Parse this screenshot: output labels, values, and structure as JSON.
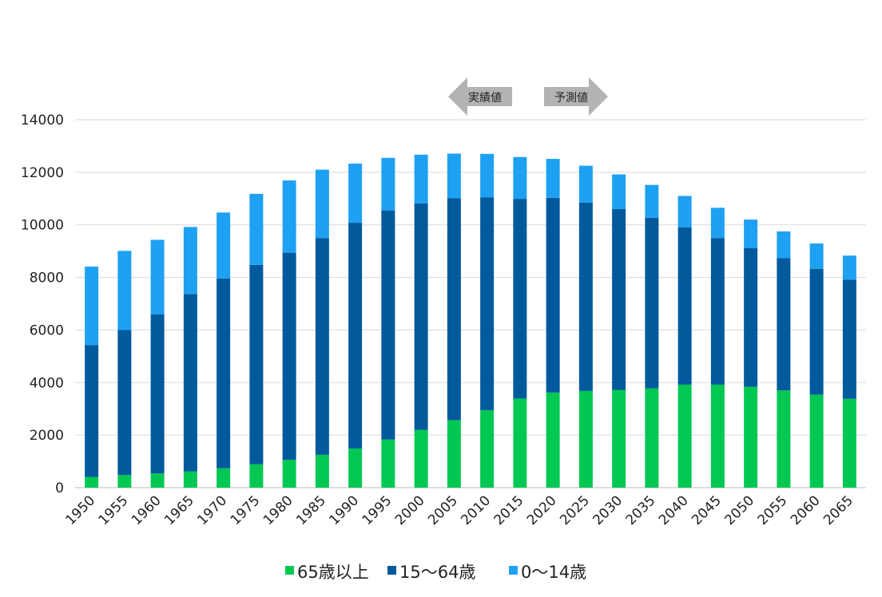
{
  "chart_data": {
    "type": "bar",
    "stacked": true,
    "title": "",
    "xlabel": "",
    "ylabel": "",
    "ylim": [
      0,
      14000
    ],
    "yticks": [
      0,
      2000,
      4000,
      6000,
      8000,
      10000,
      12000,
      14000
    ],
    "grid": true,
    "legend_position": "bottom",
    "categories": [
      "1950",
      "1955",
      "1960",
      "1965",
      "1970",
      "1975",
      "1980",
      "1985",
      "1990",
      "1995",
      "2000",
      "2005",
      "2010",
      "2015",
      "2020",
      "2025",
      "2030",
      "2035",
      "2040",
      "2045",
      "2050",
      "2055",
      "2060",
      "2065"
    ],
    "series": [
      {
        "name": "65歳以上",
        "color": "#00c853",
        "values": [
          410,
          480,
          540,
          620,
          740,
          890,
          1060,
          1250,
          1490,
          1830,
          2200,
          2570,
          2950,
          3390,
          3620,
          3680,
          3720,
          3780,
          3920,
          3920,
          3840,
          3700,
          3540,
          3380
        ]
      },
      {
        "name": "15～64歳",
        "color": "#005a9c",
        "values": [
          5020,
          5520,
          6050,
          6750,
          7220,
          7590,
          7880,
          8250,
          8590,
          8720,
          8620,
          8440,
          8100,
          7600,
          7410,
          7170,
          6880,
          6490,
          5980,
          5580,
          5270,
          5030,
          4790,
          4530
        ]
      },
      {
        "name": "0～14歳",
        "color": "#1ea1f2",
        "values": [
          2980,
          3010,
          2840,
          2550,
          2510,
          2700,
          2750,
          2600,
          2250,
          2000,
          1850,
          1700,
          1650,
          1590,
          1480,
          1400,
          1320,
          1250,
          1200,
          1150,
          1090,
          1020,
          960,
          920
        ]
      }
    ],
    "annotations": {
      "actual_label": "実績値",
      "forecast_label": "予測値",
      "divider_between": [
        "2010",
        "2015"
      ]
    }
  }
}
